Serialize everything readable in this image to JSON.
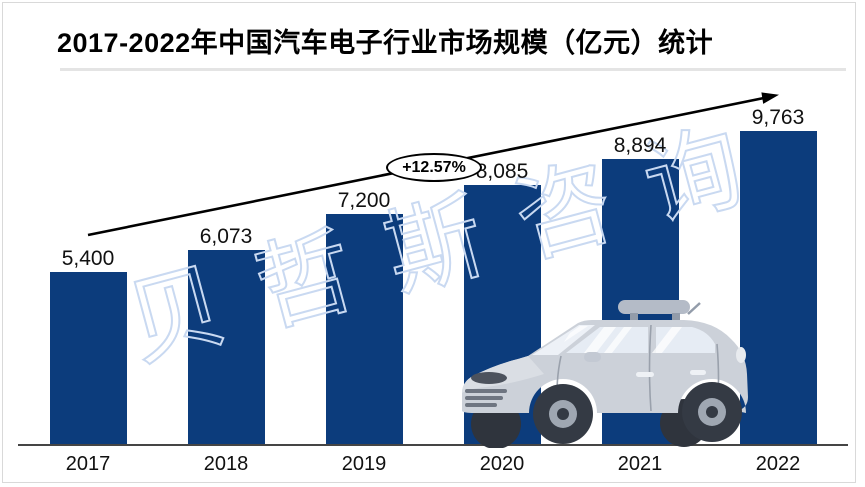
{
  "title": {
    "text": "2017-2022年中国汽车电子行业市场规模（亿元）统计"
  },
  "chart_data": {
    "type": "bar",
    "title": "2017-2022年中国汽车电子行业市场规模（亿元）统计",
    "categories": [
      "2017",
      "2018",
      "2019",
      "2020",
      "2021",
      "2022"
    ],
    "values": [
      5400,
      6073,
      7200,
      8085,
      8894,
      9763
    ],
    "value_labels": [
      "5,400",
      "6,073",
      "7,200",
      "8,085",
      "8,894",
      "9,763"
    ],
    "xlabel": "",
    "ylabel": "",
    "ylim": [
      0,
      10400
    ],
    "grid": false,
    "legend": "none",
    "bar_color": "#0c3c7c",
    "annotation": {
      "text": "+12.57%",
      "shape": "ellipse"
    },
    "trend_arrow": {
      "present": true,
      "color": "#000000"
    }
  },
  "watermark": {
    "text": "贝哲斯咨询",
    "stroke_color": "#c9d9f1"
  },
  "decor": {
    "car_illustration": "gray-minivan-with-roof-box"
  },
  "colors": {
    "bar": "#0c3c7c",
    "axis": "#454545",
    "frame": "#d9d9d9",
    "title_rule": "#e4e4e4",
    "car_body": "#ccd1d9",
    "car_wheel": "#343a44"
  }
}
